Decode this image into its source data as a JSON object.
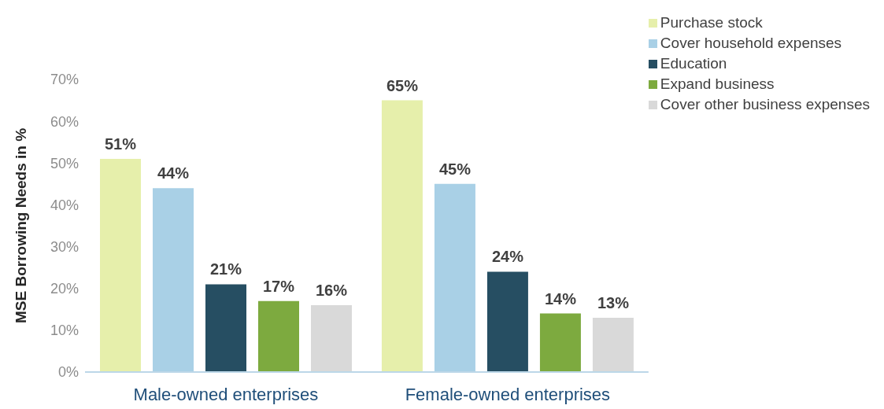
{
  "chart_data": {
    "type": "bar",
    "categories": [
      "Male-owned enterprises",
      "Female-owned enterprises"
    ],
    "ylabel": "MSE Borrowing Needs in %",
    "series": [
      {
        "name": "Purchase stock",
        "color": "#e6efab",
        "values": [
          51,
          65
        ]
      },
      {
        "name": "Cover household expenses",
        "color": "#a9d0e6",
        "values": [
          44,
          45
        ]
      },
      {
        "name": "Education",
        "color": "#264e62",
        "values": [
          21,
          24
        ]
      },
      {
        "name": "Expand business",
        "color": "#7daa3f",
        "values": [
          17,
          14
        ]
      },
      {
        "name": "Cover other business expenses",
        "color": "#d9d9d9",
        "values": [
          16,
          13
        ]
      }
    ],
    "value_labels": [
      [
        "51%",
        "65%"
      ],
      [
        "44%",
        "45%"
      ],
      [
        "21%",
        "24%"
      ],
      [
        "17%",
        "14%"
      ],
      [
        "16%",
        "13%"
      ]
    ],
    "ylim": [
      0,
      70
    ],
    "yticks": [
      {
        "value": 0,
        "label": "0%"
      },
      {
        "value": 10,
        "label": "10%"
      },
      {
        "value": 20,
        "label": "20%"
      },
      {
        "value": 30,
        "label": "30%"
      },
      {
        "value": 40,
        "label": "40%"
      },
      {
        "value": 50,
        "label": "50%"
      },
      {
        "value": 60,
        "label": "60%"
      },
      {
        "value": 70,
        "label": "70%"
      }
    ],
    "grid": false,
    "legend": "top right"
  }
}
